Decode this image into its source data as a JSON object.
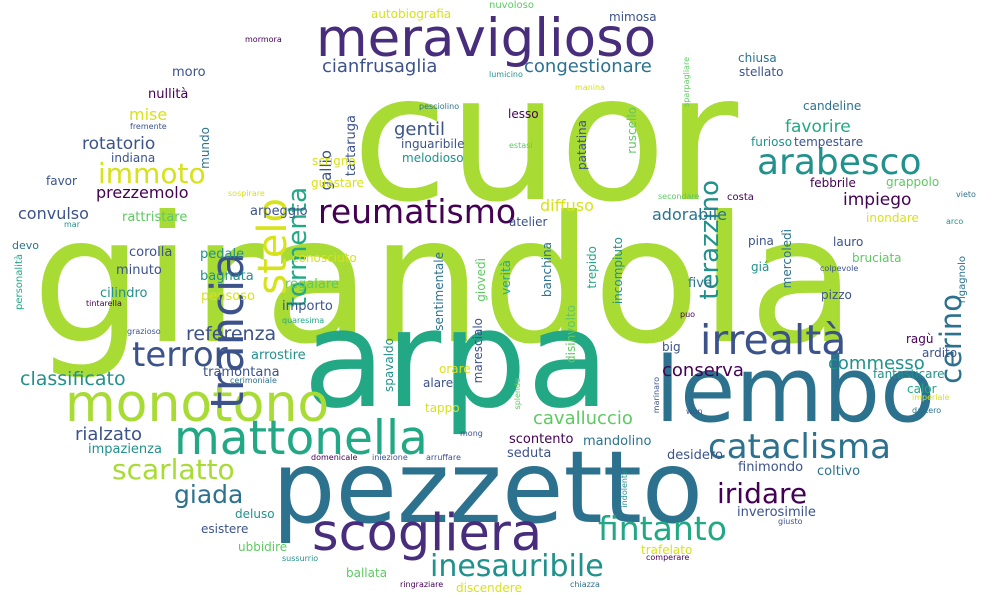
{
  "cloud": {
    "palette": {
      "lime": "#a8db34",
      "yellow": "#d8e219",
      "green": "#2db27d",
      "green_light": "#5ec962",
      "teal": "#21918c",
      "blue": "#2c728e",
      "indigo": "#3b528b",
      "purple": "#472d7b",
      "violet": "#440154"
    },
    "words": [
      {
        "text": "girandola",
        "color": "#a8db34"
      },
      {
        "text": "cuor",
        "color": "#a8db34"
      },
      {
        "text": "arpa",
        "color": "#22a884"
      },
      {
        "text": "pezzetto",
        "color": "#2c728e"
      },
      {
        "text": "lembo",
        "color": "#2c728e"
      },
      {
        "text": "monotono",
        "color": "#a8db34"
      },
      {
        "text": "mattonella",
        "color": "#22a884"
      },
      {
        "text": "meraviglioso",
        "color": "#472d7b"
      },
      {
        "text": "trancia",
        "color": "#3b528b"
      },
      {
        "text": "scogliera",
        "color": "#472d7b"
      },
      {
        "text": "irrealtà",
        "color": "#3b528b"
      },
      {
        "text": "stelo",
        "color": "#d8e219"
      },
      {
        "text": "arabesco",
        "color": "#21918c"
      },
      {
        "text": "reumatismo",
        "color": "#440154"
      },
      {
        "text": "terror",
        "color": "#3b528b"
      },
      {
        "text": "cataclisma",
        "color": "#2c728e"
      },
      {
        "text": "fintanto",
        "color": "#22a884"
      },
      {
        "text": "inesauribile",
        "color": "#21918c"
      },
      {
        "text": "iridare",
        "color": "#440154"
      },
      {
        "text": "scarlatto",
        "color": "#a8db34"
      },
      {
        "text": "immoto",
        "color": "#d8e219"
      },
      {
        "text": "tormenta",
        "color": "#22a884"
      },
      {
        "text": "terazzino",
        "color": "#21918c"
      },
      {
        "text": "cerino",
        "color": "#2c728e"
      },
      {
        "text": "giada",
        "color": "#2c728e"
      },
      {
        "text": "classificato",
        "color": "#21918c"
      },
      {
        "text": "referenza",
        "color": "#3b528b"
      },
      {
        "text": "conserva",
        "color": "#440154"
      },
      {
        "text": "commesso",
        "color": "#21918c"
      },
      {
        "text": "cavalluccio",
        "color": "#5ec962"
      },
      {
        "text": "rialzato",
        "color": "#3b528b"
      },
      {
        "text": "gentil",
        "color": "#3b528b"
      },
      {
        "text": "congestionare",
        "color": "#2c728e"
      },
      {
        "text": "cianfrusaglia",
        "color": "#3b528b"
      },
      {
        "text": "favorire",
        "color": "#22a884"
      },
      {
        "text": "impiego",
        "color": "#440154"
      },
      {
        "text": "adorabile",
        "color": "#2c728e"
      },
      {
        "text": "diffuso",
        "color": "#d8e219"
      },
      {
        "text": "rotatorio",
        "color": "#3b528b"
      },
      {
        "text": "prezzemolo",
        "color": "#440154"
      },
      {
        "text": "convulso",
        "color": "#3b528b"
      },
      {
        "text": "mise",
        "color": "#d8e219"
      },
      {
        "text": "gallio",
        "color": "#3b528b"
      },
      {
        "text": "tartaruga",
        "color": "#3b528b"
      },
      {
        "text": "mandolino",
        "color": "#2c728e"
      },
      {
        "text": "scontento",
        "color": "#440154"
      },
      {
        "text": "seduta",
        "color": "#3b528b"
      },
      {
        "text": "desidero",
        "color": "#3b528b"
      },
      {
        "text": "finimondo",
        "color": "#3b528b"
      },
      {
        "text": "coltivo",
        "color": "#2c728e"
      },
      {
        "text": "inverosimile",
        "color": "#3b528b"
      },
      {
        "text": "impazienza",
        "color": "#21918c"
      },
      {
        "text": "tramontana",
        "color": "#3b528b"
      },
      {
        "text": "arrostire",
        "color": "#21918c"
      },
      {
        "text": "importo",
        "color": "#3b528b"
      },
      {
        "text": "regalare",
        "color": "#5ec962"
      },
      {
        "text": "conosciuto",
        "color": "#d8e219"
      },
      {
        "text": "pensoso",
        "color": "#d8e219"
      },
      {
        "text": "cilindro",
        "color": "#21918c"
      },
      {
        "text": "bagnata",
        "color": "#21918c"
      },
      {
        "text": "pedale",
        "color": "#21918c"
      },
      {
        "text": "corolla",
        "color": "#3b528b"
      },
      {
        "text": "minuto",
        "color": "#3b528b"
      },
      {
        "text": "arpeggio",
        "color": "#3b528b"
      },
      {
        "text": "rattristare",
        "color": "#5ec962"
      },
      {
        "text": "favor",
        "color": "#3b528b"
      },
      {
        "text": "indiana",
        "color": "#3b528b"
      },
      {
        "text": "mundo",
        "color": "#2c728e"
      },
      {
        "text": "nullità",
        "color": "#440154"
      },
      {
        "text": "moro",
        "color": "#3b528b"
      },
      {
        "text": "scrigno",
        "color": "#d8e219"
      },
      {
        "text": "guastare",
        "color": "#d8e219"
      },
      {
        "text": "melodioso",
        "color": "#21918c"
      },
      {
        "text": "inguaribile",
        "color": "#3b528b"
      },
      {
        "text": "sentimentale",
        "color": "#2c728e"
      },
      {
        "text": "atelier",
        "color": "#3b528b"
      },
      {
        "text": "giovedì",
        "color": "#5ec962"
      },
      {
        "text": "verità",
        "color": "#22a884"
      },
      {
        "text": "banchina",
        "color": "#2c728e"
      },
      {
        "text": "trepido",
        "color": "#22a884"
      },
      {
        "text": "incompiuto",
        "color": "#21918c"
      },
      {
        "text": "five",
        "color": "#2c728e"
      },
      {
        "text": "patatina",
        "color": "#3b528b"
      },
      {
        "text": "ruscello",
        "color": "#5ec962"
      },
      {
        "text": "furioso",
        "color": "#21918c"
      },
      {
        "text": "tempestare",
        "color": "#3b528b"
      },
      {
        "text": "candeline",
        "color": "#2c728e"
      },
      {
        "text": "stellato",
        "color": "#3b528b"
      },
      {
        "text": "chiusa",
        "color": "#2c728e"
      },
      {
        "text": "febbrile",
        "color": "#440154"
      },
      {
        "text": "grappolo",
        "color": "#5ec962"
      },
      {
        "text": "inondare",
        "color": "#d8e219"
      },
      {
        "text": "costa",
        "color": "#440154"
      },
      {
        "text": "lauro",
        "color": "#3b528b"
      },
      {
        "text": "bruciata",
        "color": "#5ec962"
      },
      {
        "text": "pizzo",
        "color": "#3b528b"
      },
      {
        "text": "pina",
        "color": "#3b528b"
      },
      {
        "text": "giá",
        "color": "#21918c"
      },
      {
        "text": "mercoledì",
        "color": "#2c728e"
      },
      {
        "text": "ragù",
        "color": "#440154"
      },
      {
        "text": "ardito",
        "color": "#3b528b"
      },
      {
        "text": "fantasticare",
        "color": "#21918c"
      },
      {
        "text": "calor",
        "color": "#22a884"
      },
      {
        "text": "big",
        "color": "#3b528b"
      },
      {
        "text": "lesso",
        "color": "#440154"
      },
      {
        "text": "mimosa",
        "color": "#3b528b"
      },
      {
        "text": "autobiografia",
        "color": "#d8e219"
      },
      {
        "text": "nuvoloso",
        "color": "#5ec962"
      },
      {
        "text": "marescialo",
        "color": "#3b528b"
      },
      {
        "text": "disinvolto",
        "color": "#5ec962"
      },
      {
        "text": "orare",
        "color": "#d8e219"
      },
      {
        "text": "alare",
        "color": "#3b528b"
      },
      {
        "text": "tappo",
        "color": "#d8e219"
      },
      {
        "text": "spavaldo",
        "color": "#21918c"
      },
      {
        "text": "deluso",
        "color": "#21918c"
      },
      {
        "text": "esistere",
        "color": "#3b528b"
      },
      {
        "text": "ubbidire",
        "color": "#5ec962"
      },
      {
        "text": "ballata",
        "color": "#5ec962"
      },
      {
        "text": "discendere",
        "color": "#d8e219"
      },
      {
        "text": "trafelato",
        "color": "#d8e219"
      },
      {
        "text": "personalità",
        "color": "#22a884"
      },
      {
        "text": "devo",
        "color": "#2c728e"
      },
      {
        "text": "rigagnolo",
        "color": "#2c728e"
      },
      {
        "text": "imperiale",
        "color": "#d8e219"
      },
      {
        "text": "dattero",
        "color": "#2c728e"
      },
      {
        "text": "arco",
        "color": "#21918c"
      },
      {
        "text": "vieto",
        "color": "#2c728e"
      },
      {
        "text": "giusto",
        "color": "#3b528b"
      },
      {
        "text": "comperare",
        "color": "#440154"
      },
      {
        "text": "chiazza",
        "color": "#2c728e"
      },
      {
        "text": "ringraziare",
        "color": "#440154"
      },
      {
        "text": "sussurrio",
        "color": "#21918c"
      },
      {
        "text": "domenicale",
        "color": "#440154"
      },
      {
        "text": "iniezione",
        "color": "#3b528b"
      },
      {
        "text": "arruffare",
        "color": "#3b528b"
      },
      {
        "text": "indolente",
        "color": "#21918c"
      },
      {
        "text": "won",
        "color": "#3b528b"
      },
      {
        "text": "marinaro",
        "color": "#3b528b"
      },
      {
        "text": "splende",
        "color": "#5ec962"
      },
      {
        "text": "mong",
        "color": "#3b528b"
      },
      {
        "text": "cerimoniale",
        "color": "#2c728e"
      },
      {
        "text": "quaresima",
        "color": "#22a884"
      },
      {
        "text": "grazioso",
        "color": "#3b528b"
      },
      {
        "text": "tintarella",
        "color": "#440154"
      },
      {
        "text": "puo",
        "color": "#440154"
      },
      {
        "text": "colpevole",
        "color": "#3b528b"
      },
      {
        "text": "secondare",
        "color": "#5ec962"
      },
      {
        "text": "sospirare",
        "color": "#d8e219"
      },
      {
        "text": "mar",
        "color": "#21918c"
      },
      {
        "text": "estasi",
        "color": "#5ec962"
      },
      {
        "text": "pesciolino",
        "color": "#2c728e"
      },
      {
        "text": "lumicino",
        "color": "#21918c"
      },
      {
        "text": "fremente",
        "color": "#3b528b"
      },
      {
        "text": "mormora",
        "color": "#440154"
      },
      {
        "text": "manina",
        "color": "#d8e219"
      },
      {
        "text": "sparpagliare",
        "color": "#5ec962"
      }
    ]
  }
}
